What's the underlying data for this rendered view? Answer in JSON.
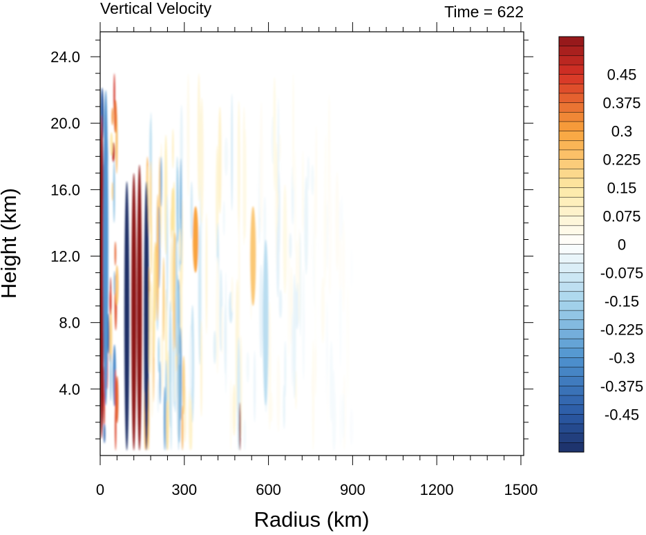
{
  "chart_data": {
    "type": "heatmap",
    "title": "Vertical Velocity",
    "subtitle": "Time = 622",
    "xlabel": "Radius (km)",
    "ylabel": "Height (km)",
    "xlim": [
      0,
      1510
    ],
    "ylim": [
      0,
      25.5
    ],
    "x_ticks": [
      0,
      300,
      600,
      900,
      1200,
      1500
    ],
    "x_tick_labels": [
      "0",
      "300",
      "600",
      "900",
      "1200",
      "1500"
    ],
    "y_ticks": [
      4,
      8,
      12,
      16,
      20,
      24
    ],
    "y_tick_labels": [
      "4.0",
      "8.0",
      "12.0",
      "16.0",
      "20.0",
      "24.0"
    ],
    "colorbar": {
      "min": -0.55,
      "max": 0.55,
      "step": 0.025,
      "label_values": [
        0.45,
        0.375,
        0.3,
        0.225,
        0.15,
        0.075,
        0,
        -0.075,
        -0.15,
        -0.225,
        -0.3,
        -0.375,
        -0.45
      ],
      "labels": [
        "0.45",
        "0.375",
        "0.3",
        "0.225",
        "0.15",
        "0.075",
        "0",
        "-0.075",
        "-0.15",
        "-0.225",
        "-0.3",
        "-0.375",
        "-0.45"
      ],
      "stops": [
        {
          "v": -0.55,
          "color": "#1c2f66"
        },
        {
          "v": -0.45,
          "color": "#2b5aa6"
        },
        {
          "v": -0.3,
          "color": "#4f93cf"
        },
        {
          "v": -0.15,
          "color": "#a8d5ec"
        },
        {
          "v": 0.0,
          "color": "#ffffff"
        },
        {
          "v": 0.15,
          "color": "#fde9a6"
        },
        {
          "v": 0.3,
          "color": "#f9a33c"
        },
        {
          "v": 0.45,
          "color": "#d63226"
        },
        {
          "v": 0.55,
          "color": "#8e1519"
        }
      ]
    },
    "features": [
      {
        "kind": "updraft-column",
        "r": 140,
        "z": [
          0.3,
          17.5
        ],
        "w": 0.7
      },
      {
        "kind": "downdraft-column",
        "r": 95,
        "z": [
          0.3,
          16.5
        ],
        "w": -0.7
      },
      {
        "kind": "updraft-column",
        "r": 120,
        "z": [
          0.3,
          17
        ],
        "w": 0.65
      },
      {
        "kind": "downdraft-column",
        "r": 165,
        "z": [
          0.3,
          16.5
        ],
        "w": -0.6
      },
      {
        "kind": "updraft-column",
        "r": 5,
        "z": [
          1,
          20.5
        ],
        "w": 0.55
      },
      {
        "kind": "downdraft-column",
        "r": 20,
        "z": [
          3,
          22
        ],
        "w": -0.3
      },
      {
        "kind": "updraft-band",
        "r": 340,
        "z": [
          11,
          15
        ],
        "w": 0.3
      },
      {
        "kind": "updraft-band",
        "r": 545,
        "z": [
          9,
          15
        ],
        "w": 0.22
      },
      {
        "kind": "downdraft-band",
        "r": 590,
        "z": [
          3,
          13
        ],
        "w": -0.12
      },
      {
        "kind": "updraft-streak",
        "r": 498,
        "z": [
          0.3,
          3.2
        ],
        "w": 0.6
      }
    ]
  }
}
